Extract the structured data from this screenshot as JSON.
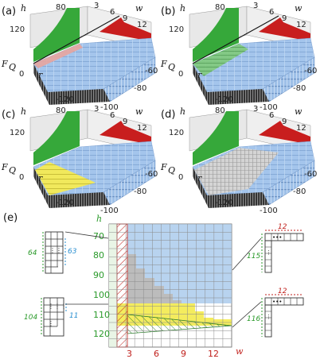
{
  "panels": [
    {
      "label": "(a)",
      "variant": "pink",
      "line": true
    },
    {
      "label": "(b)",
      "variant": "green",
      "line": true
    },
    {
      "label": "(c)",
      "variant": "yellow",
      "line": false
    },
    {
      "label": "(d)",
      "variant": "gray",
      "line": false
    }
  ],
  "surface_axes": {
    "h_label": "h",
    "w_label": "w",
    "fq_label": "F",
    "fq_sub": "Q",
    "r_label": "r",
    "h_ticks": [
      "80",
      "120"
    ],
    "w_ticks": [
      "3",
      "6",
      "9",
      "12"
    ],
    "r_ticks": [
      "0",
      "-120"
    ],
    "fq_ticks": [
      "0",
      "-100",
      "-80",
      "-60"
    ]
  },
  "phase_diagram": {
    "label": "(e)",
    "h_label": "h",
    "w_label": "w",
    "h_ticks": [
      "70",
      "80",
      "90",
      "100",
      "110",
      "120"
    ],
    "w_ticks": [
      "3",
      "6",
      "9",
      "12"
    ]
  },
  "boards": {
    "left_top": {
      "left": "64",
      "right": "63"
    },
    "left_bottom": {
      "left": "104",
      "right": "11"
    },
    "right_top": {
      "top": "12",
      "left": "115"
    },
    "right_bottom": {
      "top": "12",
      "left": "116"
    }
  },
  "colors": {
    "blue": "#a9c8ec",
    "green": "#36a83a",
    "red": "#c81e1e",
    "yellow": "#f2ea5a",
    "gray": "#bdbdbd",
    "pink": "#e8a49e"
  }
}
